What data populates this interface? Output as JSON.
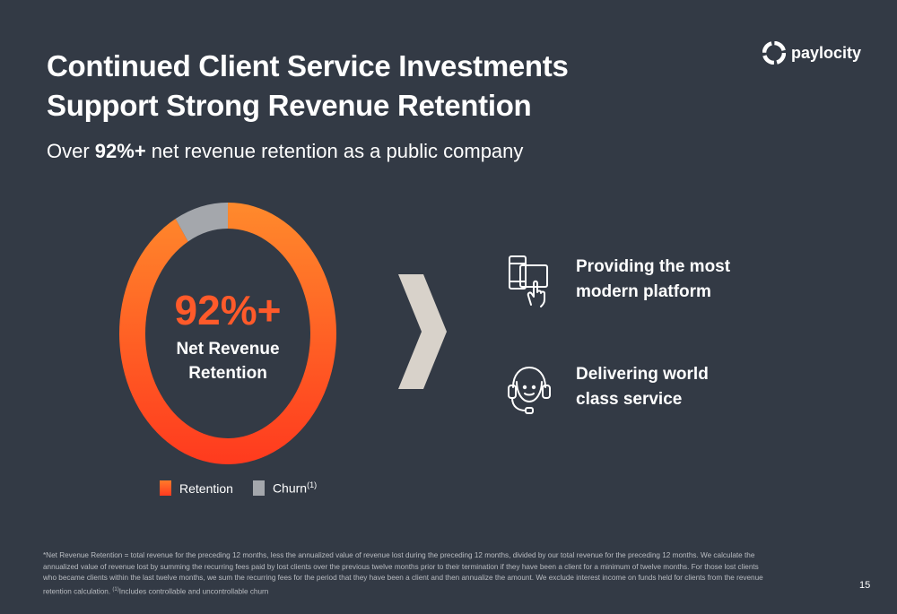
{
  "slide": {
    "title_line1": "Continued Client Service Investments",
    "title_line2": "Support Strong Revenue Retention",
    "subtitle_prefix": "Over ",
    "subtitle_bold": "92%+",
    "subtitle_suffix": " net revenue retention as a public company",
    "page_number": "15"
  },
  "logo": {
    "text": "paylocity",
    "icon": "paylocity-logo-icon"
  },
  "chart_data": {
    "type": "pie",
    "style": "donut",
    "categories": [
      "Retention",
      "Churn"
    ],
    "values": [
      92,
      8
    ],
    "colors": [
      "#ff5a24",
      "#a4a7ac"
    ],
    "center_value": "92%+",
    "center_label_line1": "Net Revenue",
    "center_label_line2": "Retention",
    "legend": {
      "placement": "bottom",
      "retention": "Retention",
      "churn": "Churn",
      "churn_sup": "(1)"
    }
  },
  "features": [
    {
      "icon": "touch-screen-icon",
      "line1": "Providing the most",
      "line2": "modern platform"
    },
    {
      "icon": "headset-support-icon",
      "line1": "Delivering world",
      "line2": "class service"
    }
  ],
  "colors": {
    "background": "#333a45",
    "accent": "#ff5a2a",
    "chevron": "#d8d2ca"
  },
  "footnote": {
    "main": "*Net Revenue Retention = total revenue for the preceding 12 months, less the annualized value of revenue lost during the preceding 12 months, divided by our total revenue for the preceding 12 months. We calculate the annualized value of revenue lost by summing the recurring fees paid by lost clients over the previous twelve months prior to their termination if they have been a client for a minimum of twelve months. For those lost clients who became clients within the last twelve months, we sum the recurring fees for the period that they have been a client and then annualize the amount. We exclude interest income on funds held for clients from the revenue retention calculation. ",
    "sup": "(1)",
    "tail": "Includes controllable and uncontrollable churn"
  }
}
